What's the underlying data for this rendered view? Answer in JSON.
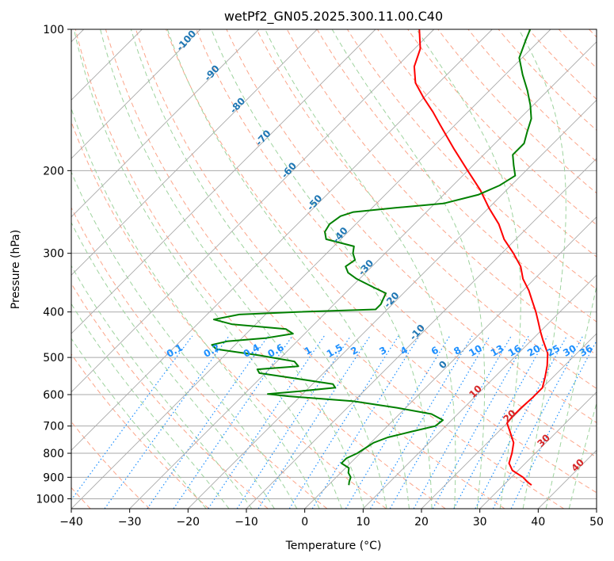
{
  "chart_data": {
    "type": "line",
    "subtype": "skew-t log-p diagram",
    "title": "wetPf2_GN05.2025.300.11.00.C40",
    "xlabel": "Temperature (°C)",
    "ylabel": "Pressure (hPa)",
    "xlim": [
      -40,
      50
    ],
    "ylim_pressure": [
      1050,
      100
    ],
    "y_scale": "log",
    "grid": true,
    "x_ticks": [
      -40,
      -30,
      -20,
      -10,
      0,
      10,
      20,
      30,
      40,
      50
    ],
    "x_tick_labels": [
      "−40",
      "−30",
      "−20",
      "−10",
      "0",
      "10",
      "20",
      "30",
      "40",
      "50"
    ],
    "y_ticks": [
      100,
      200,
      300,
      400,
      500,
      600,
      700,
      800,
      900,
      1000
    ],
    "y_tick_labels": [
      "100",
      "200",
      "300",
      "400",
      "500",
      "600",
      "700",
      "800",
      "900",
      "1000"
    ],
    "colors": {
      "temperature": "#ff0000",
      "dewpoint": "#008000",
      "isotherm": "#a9a9a9",
      "dry_adiabat": "#fca58a",
      "moist_adiabat": "#9ed39e",
      "mixing_ratio": "#1e90ff",
      "moist_label": "#1f77b4",
      "dry_label": "#d62728"
    },
    "series": [
      {
        "key": "temperature",
        "points": [
          [
            935,
            34.8
          ],
          [
            920,
            33.5
          ],
          [
            900,
            32.0
          ],
          [
            870,
            29.0
          ],
          [
            840,
            27.2
          ],
          [
            800,
            26.0
          ],
          [
            760,
            24.5
          ],
          [
            720,
            22.0
          ],
          [
            690,
            20.0
          ],
          [
            670,
            19.8
          ],
          [
            640,
            19.8
          ],
          [
            610,
            20.0
          ],
          [
            580,
            20.0
          ],
          [
            550,
            18.6
          ],
          [
            520,
            17.0
          ],
          [
            490,
            15.0
          ],
          [
            460,
            12.0
          ],
          [
            440,
            10.0
          ],
          [
            420,
            8.0
          ],
          [
            400,
            5.9
          ],
          [
            380,
            3.5
          ],
          [
            360,
            1.0
          ],
          [
            340,
            -2.0
          ],
          [
            320,
            -4.5
          ],
          [
            300,
            -8.0
          ],
          [
            280,
            -12.0
          ],
          [
            260,
            -15.5
          ],
          [
            240,
            -20.0
          ],
          [
            220,
            -24.5
          ],
          [
            200,
            -30.0
          ],
          [
            180,
            -36.0
          ],
          [
            160,
            -42.5
          ],
          [
            150,
            -46.0
          ],
          [
            140,
            -50.0
          ],
          [
            130,
            -54.0
          ],
          [
            120,
            -57.0
          ],
          [
            110,
            -59.0
          ],
          [
            100,
            -62.5
          ]
        ]
      },
      {
        "key": "dewpoint",
        "points": [
          [
            935,
            3.5
          ],
          [
            920,
            3.0
          ],
          [
            900,
            2.5
          ],
          [
            880,
            1.3
          ],
          [
            860,
            0.6
          ],
          [
            840,
            -1.5
          ],
          [
            820,
            -1.5
          ],
          [
            800,
            -0.5
          ],
          [
            780,
            0.0
          ],
          [
            760,
            0.5
          ],
          [
            740,
            2.0
          ],
          [
            720,
            5.0
          ],
          [
            700,
            8.2
          ],
          [
            680,
            8.5
          ],
          [
            660,
            5.5
          ],
          [
            640,
            -1.5
          ],
          [
            620,
            -10.0
          ],
          [
            605,
            -22.0
          ],
          [
            598,
            -26.0
          ],
          [
            590,
            -21.0
          ],
          [
            580,
            -15.5
          ],
          [
            570,
            -16.5
          ],
          [
            555,
            -23.5
          ],
          [
            540,
            -31.0
          ],
          [
            530,
            -32.0
          ],
          [
            522,
            -25.5
          ],
          [
            510,
            -27.0
          ],
          [
            495,
            -34.0
          ],
          [
            480,
            -42.5
          ],
          [
            470,
            -44.0
          ],
          [
            462,
            -42.0
          ],
          [
            455,
            -36.0
          ],
          [
            445,
            -32.0
          ],
          [
            435,
            -34.0
          ],
          [
            425,
            -44.0
          ],
          [
            415,
            -48.0
          ],
          [
            405,
            -44.5
          ],
          [
            400,
            -35.0
          ],
          [
            395,
            -22.0
          ],
          [
            385,
            -22.0
          ],
          [
            375,
            -22.5
          ],
          [
            365,
            -23.0
          ],
          [
            355,
            -26.0
          ],
          [
            340,
            -30.5
          ],
          [
            330,
            -33.0
          ],
          [
            320,
            -34.5
          ],
          [
            310,
            -34.0
          ],
          [
            300,
            -35.5
          ],
          [
            290,
            -36.5
          ],
          [
            280,
            -42.5
          ],
          [
            270,
            -44.0
          ],
          [
            260,
            -44.5
          ],
          [
            250,
            -44.0
          ],
          [
            245,
            -42.5
          ],
          [
            240,
            -36.0
          ],
          [
            235,
            -28.5
          ],
          [
            225,
            -24.0
          ],
          [
            215,
            -22.0
          ],
          [
            205,
            -21.0
          ],
          [
            195,
            -23.0
          ],
          [
            185,
            -25.0
          ],
          [
            175,
            -25.0
          ],
          [
            165,
            -26.5
          ],
          [
            155,
            -28.0
          ],
          [
            145,
            -30.5
          ],
          [
            135,
            -33.5
          ],
          [
            125,
            -37.0
          ],
          [
            115,
            -40.5
          ],
          [
            105,
            -42.5
          ],
          [
            100,
            -43.5
          ]
        ]
      }
    ],
    "mixing_ratio_labels": [
      "0.1",
      "0.2",
      "0.4",
      "0.6",
      "1",
      "1.5",
      "2",
      "3",
      "4",
      "6",
      "8",
      "10",
      "13",
      "16",
      "20",
      "25",
      "30",
      "36"
    ],
    "moist_adiabat_labels": [
      "-100",
      "-90",
      "-80",
      "-70",
      "-60",
      "-50",
      "-40",
      "-30",
      "-20",
      "-10",
      "0"
    ],
    "dry_adiabat_labels": [
      "10",
      "20",
      "30",
      "40"
    ]
  }
}
